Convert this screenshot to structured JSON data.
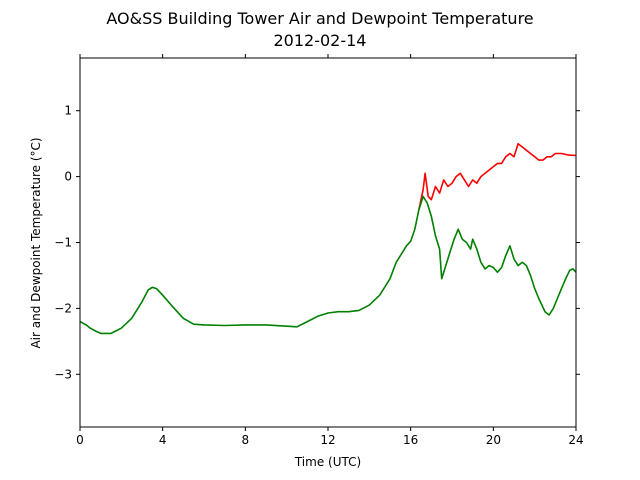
{
  "chart_data": {
    "type": "line",
    "title": "AO&SS Building Tower Air and Dewpoint Temperature",
    "subtitle": "2012-02-14",
    "xlabel": "Time (UTC)",
    "ylabel": "Air and Dewpoint Temperature (°C)",
    "xlim": [
      0,
      24
    ],
    "ylim": [
      -3.8,
      1.8
    ],
    "xticks": [
      0,
      4,
      8,
      12,
      16,
      20,
      24
    ],
    "yticks": [
      -3,
      -2,
      -1,
      0,
      1
    ],
    "grid": false,
    "legend": "none",
    "series": [
      {
        "color": "#ff0000",
        "points": [
          [
            16.4,
            -0.5
          ],
          [
            16.6,
            -0.2
          ],
          [
            16.7,
            0.05
          ],
          [
            16.85,
            -0.3
          ],
          [
            17.0,
            -0.35
          ],
          [
            17.2,
            -0.15
          ],
          [
            17.4,
            -0.25
          ],
          [
            17.6,
            -0.05
          ],
          [
            17.8,
            -0.15
          ],
          [
            18.0,
            -0.1
          ],
          [
            18.2,
            0.0
          ],
          [
            18.4,
            0.05
          ],
          [
            18.6,
            -0.05
          ],
          [
            18.8,
            -0.15
          ],
          [
            19.0,
            -0.05
          ],
          [
            19.2,
            -0.1
          ],
          [
            19.4,
            0.0
          ],
          [
            19.6,
            0.05
          ],
          [
            19.8,
            0.1
          ],
          [
            20.0,
            0.15
          ],
          [
            20.2,
            0.2
          ],
          [
            20.4,
            0.2
          ],
          [
            20.6,
            0.3
          ],
          [
            20.8,
            0.35
          ],
          [
            21.0,
            0.3
          ],
          [
            21.2,
            0.5
          ],
          [
            21.4,
            0.45
          ],
          [
            21.6,
            0.4
          ],
          [
            21.8,
            0.35
          ],
          [
            22.0,
            0.3
          ],
          [
            22.2,
            0.25
          ],
          [
            22.4,
            0.25
          ],
          [
            22.6,
            0.3
          ],
          [
            22.8,
            0.3
          ],
          [
            23.0,
            0.35
          ],
          [
            23.3,
            0.35
          ],
          [
            23.6,
            0.33
          ],
          [
            24.0,
            0.32
          ]
        ]
      },
      {
        "color": "#008000",
        "points": [
          [
            0.0,
            -2.2
          ],
          [
            0.3,
            -2.25
          ],
          [
            0.5,
            -2.3
          ],
          [
            0.8,
            -2.35
          ],
          [
            1.0,
            -2.38
          ],
          [
            1.5,
            -2.38
          ],
          [
            2.0,
            -2.3
          ],
          [
            2.5,
            -2.15
          ],
          [
            3.0,
            -1.9
          ],
          [
            3.3,
            -1.72
          ],
          [
            3.5,
            -1.68
          ],
          [
            3.7,
            -1.7
          ],
          [
            4.0,
            -1.8
          ],
          [
            4.5,
            -1.98
          ],
          [
            5.0,
            -2.15
          ],
          [
            5.5,
            -2.24
          ],
          [
            6.0,
            -2.25
          ],
          [
            7.0,
            -2.26
          ],
          [
            8.0,
            -2.25
          ],
          [
            9.0,
            -2.25
          ],
          [
            10.0,
            -2.27
          ],
          [
            10.5,
            -2.28
          ],
          [
            11.0,
            -2.2
          ],
          [
            11.5,
            -2.12
          ],
          [
            12.0,
            -2.07
          ],
          [
            12.5,
            -2.05
          ],
          [
            13.0,
            -2.05
          ],
          [
            13.5,
            -2.03
          ],
          [
            14.0,
            -1.95
          ],
          [
            14.5,
            -1.8
          ],
          [
            15.0,
            -1.55
          ],
          [
            15.3,
            -1.3
          ],
          [
            15.6,
            -1.15
          ],
          [
            15.8,
            -1.05
          ],
          [
            16.0,
            -0.98
          ],
          [
            16.2,
            -0.8
          ],
          [
            16.4,
            -0.5
          ],
          [
            16.6,
            -0.3
          ],
          [
            16.8,
            -0.4
          ],
          [
            17.0,
            -0.6
          ],
          [
            17.2,
            -0.9
          ],
          [
            17.4,
            -1.1
          ],
          [
            17.5,
            -1.55
          ],
          [
            17.7,
            -1.35
          ],
          [
            17.9,
            -1.15
          ],
          [
            18.1,
            -0.95
          ],
          [
            18.3,
            -0.8
          ],
          [
            18.5,
            -0.95
          ],
          [
            18.7,
            -1.0
          ],
          [
            18.9,
            -1.1
          ],
          [
            19.0,
            -0.95
          ],
          [
            19.2,
            -1.1
          ],
          [
            19.4,
            -1.3
          ],
          [
            19.6,
            -1.4
          ],
          [
            19.8,
            -1.35
          ],
          [
            20.0,
            -1.38
          ],
          [
            20.2,
            -1.45
          ],
          [
            20.4,
            -1.38
          ],
          [
            20.6,
            -1.2
          ],
          [
            20.8,
            -1.05
          ],
          [
            21.0,
            -1.25
          ],
          [
            21.2,
            -1.35
          ],
          [
            21.4,
            -1.3
          ],
          [
            21.6,
            -1.35
          ],
          [
            21.8,
            -1.5
          ],
          [
            22.0,
            -1.7
          ],
          [
            22.2,
            -1.85
          ],
          [
            22.5,
            -2.05
          ],
          [
            22.7,
            -2.1
          ],
          [
            22.9,
            -2.0
          ],
          [
            23.1,
            -1.85
          ],
          [
            23.3,
            -1.7
          ],
          [
            23.5,
            -1.55
          ],
          [
            23.7,
            -1.42
          ],
          [
            23.85,
            -1.4
          ],
          [
            24.0,
            -1.45
          ]
        ]
      }
    ]
  }
}
